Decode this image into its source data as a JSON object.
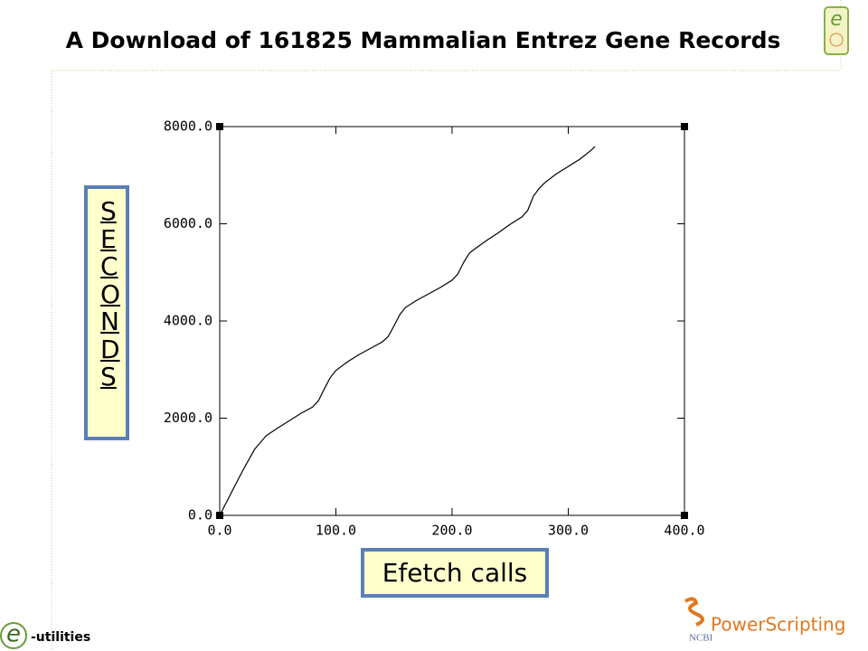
{
  "chart_data": {
    "type": "line",
    "title": "A Download of 161825 Mammalian Entrez Gene Records",
    "x_label": "Efetch calls",
    "y_label": "SECONDS",
    "x": [
      0,
      10,
      20,
      30,
      40,
      50,
      60,
      70,
      80,
      85,
      90,
      95,
      100,
      110,
      120,
      130,
      140,
      145,
      150,
      155,
      160,
      170,
      180,
      190,
      200,
      205,
      210,
      215,
      220,
      230,
      240,
      250,
      260,
      265,
      270,
      275,
      280,
      290,
      300,
      310,
      320,
      323
    ],
    "y": [
      0,
      465,
      930,
      1360,
      1640,
      1800,
      1950,
      2100,
      2230,
      2360,
      2600,
      2830,
      2980,
      3160,
      3310,
      3440,
      3570,
      3680,
      3900,
      4130,
      4280,
      4430,
      4560,
      4690,
      4840,
      4970,
      5210,
      5400,
      5490,
      5660,
      5820,
      5990,
      6140,
      6270,
      6570,
      6730,
      6850,
      7030,
      7180,
      7330,
      7520,
      7590
    ],
    "color": "#000000",
    "xlim": [
      0,
      400
    ],
    "ylim": [
      0,
      8000
    ],
    "xticks": [
      {
        "value": 0,
        "label": "0.0"
      },
      {
        "value": 100,
        "label": "100.0"
      },
      {
        "value": 200,
        "label": "200.0"
      },
      {
        "value": 300,
        "label": "300.0"
      },
      {
        "value": 400,
        "label": "400.0"
      }
    ],
    "yticks": [
      {
        "value": 0,
        "label": "0.0"
      },
      {
        "value": 2000,
        "label": "2000.0"
      },
      {
        "value": 4000,
        "label": "4000.0"
      },
      {
        "value": 6000,
        "label": "6000.0"
      },
      {
        "value": 8000,
        "label": "8000.0"
      }
    ]
  },
  "branding": {
    "e_letter": "e",
    "eutilities": "-utilities",
    "powerscripting": "PowerScripting",
    "ncbi": "NCBI"
  }
}
